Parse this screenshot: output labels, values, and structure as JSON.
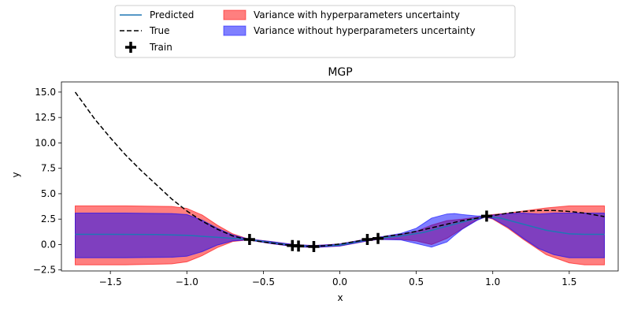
{
  "chart_data": {
    "type": "line",
    "title": "MGP",
    "xlabel": "x",
    "ylabel": "y",
    "xlim": [
      -1.82,
      1.82
    ],
    "ylim": [
      -2.6,
      16.0
    ],
    "xticks": [
      -1.5,
      -1.0,
      -0.5,
      0.0,
      0.5,
      1.0,
      1.5
    ],
    "xtick_labels": [
      "−1.5",
      "−1.0",
      "−0.5",
      "0.0",
      "0.5",
      "1.0",
      "1.5"
    ],
    "yticks": [
      -2.5,
      0.0,
      2.5,
      5.0,
      7.5,
      10.0,
      12.5,
      15.0
    ],
    "ytick_labels": [
      "−2.5",
      "0.0",
      "2.5",
      "5.0",
      "7.5",
      "10.0",
      "12.5",
      "15.0"
    ],
    "grid": false,
    "legend_position": "above-plot",
    "legend": [
      {
        "label": "Predicted",
        "kind": "line",
        "color": "#1f77b4"
      },
      {
        "label": "True",
        "kind": "dashed",
        "color": "#000000"
      },
      {
        "label": "Train",
        "kind": "plus",
        "color": "#000000"
      },
      {
        "label": "Variance with hyperparameters uncertainty",
        "kind": "patch",
        "color": "#ff7f7f",
        "edge": "#ff0000"
      },
      {
        "label": "Variance without hyperparameters uncertainty",
        "kind": "patch",
        "color": "#7f7fff",
        "edge": "#0000ff"
      }
    ],
    "series": [
      {
        "name": "Predicted",
        "style": "line",
        "color": "#1f77b4",
        "x": [
          -1.73,
          -1.5,
          -1.2,
          -1.0,
          -0.8,
          -0.6,
          -0.45,
          -0.3,
          -0.17,
          0.0,
          0.18,
          0.25,
          0.4,
          0.55,
          0.7,
          0.85,
          0.95,
          1.05,
          1.2,
          1.35,
          1.5,
          1.6,
          1.73
        ],
        "y": [
          1.0,
          1.0,
          0.98,
          0.9,
          0.72,
          0.5,
          0.2,
          -0.1,
          -0.2,
          -0.05,
          0.45,
          0.6,
          0.85,
          1.2,
          1.8,
          2.4,
          2.75,
          2.6,
          2.0,
          1.4,
          1.05,
          1.0,
          1.0
        ]
      },
      {
        "name": "True",
        "style": "dashed",
        "color": "#000000",
        "x": [
          -1.73,
          -1.6,
          -1.5,
          -1.4,
          -1.3,
          -1.2,
          -1.1,
          -1.0,
          -0.9,
          -0.8,
          -0.7,
          -0.6,
          -0.5,
          -0.4,
          -0.3,
          -0.2,
          -0.1,
          0.0,
          0.1,
          0.2,
          0.3,
          0.4,
          0.5,
          0.6,
          0.7,
          0.8,
          0.9,
          1.0,
          1.1,
          1.2,
          1.3,
          1.4,
          1.5,
          1.6,
          1.73
        ],
        "y": [
          15.0,
          12.3,
          10.5,
          8.8,
          7.3,
          5.9,
          4.5,
          3.3,
          2.3,
          1.5,
          0.85,
          0.45,
          0.25,
          0.05,
          -0.12,
          -0.2,
          -0.12,
          0.05,
          0.3,
          0.55,
          0.8,
          1.0,
          1.3,
          1.65,
          2.0,
          2.35,
          2.6,
          2.85,
          3.1,
          3.25,
          3.35,
          3.35,
          3.25,
          3.1,
          2.75
        ]
      }
    ],
    "bands": [
      {
        "name": "Variance with hyperparameters uncertainty",
        "color": "#ff0000",
        "opacity": 0.5,
        "x": [
          -1.73,
          -1.4,
          -1.1,
          -1.0,
          -0.9,
          -0.8,
          -0.7,
          -0.6,
          -0.45,
          -0.3,
          -0.17,
          0.0,
          0.18,
          0.25,
          0.4,
          0.5,
          0.6,
          0.7,
          0.8,
          0.9,
          0.95,
          1.0,
          1.1,
          1.2,
          1.35,
          1.5,
          1.6,
          1.73
        ],
        "upper": [
          3.8,
          3.8,
          3.75,
          3.55,
          2.9,
          1.9,
          1.05,
          0.55,
          0.3,
          0.0,
          -0.1,
          0.05,
          0.55,
          0.7,
          1.0,
          1.3,
          1.9,
          2.35,
          2.5,
          2.7,
          2.85,
          2.95,
          3.1,
          3.3,
          3.6,
          3.8,
          3.8,
          3.8
        ],
        "lower": [
          -2.0,
          -2.0,
          -1.9,
          -1.7,
          -1.1,
          -0.3,
          0.3,
          0.45,
          0.1,
          -0.2,
          -0.3,
          -0.15,
          0.35,
          0.5,
          0.5,
          0.35,
          0.0,
          0.6,
          1.55,
          2.45,
          2.7,
          2.5,
          1.6,
          0.5,
          -1.0,
          -1.8,
          -2.0,
          -2.0
        ]
      },
      {
        "name": "Variance without hyperparameters uncertainty",
        "color": "#0000ff",
        "opacity": 0.5,
        "x": [
          -1.73,
          -1.4,
          -1.1,
          -1.0,
          -0.9,
          -0.8,
          -0.7,
          -0.6,
          -0.45,
          -0.3,
          -0.17,
          0.0,
          0.18,
          0.25,
          0.4,
          0.5,
          0.6,
          0.7,
          0.75,
          0.8,
          0.9,
          0.95,
          1.0,
          1.1,
          1.2,
          1.3,
          1.4,
          1.5,
          1.6,
          1.73
        ],
        "upper": [
          3.1,
          3.1,
          3.05,
          2.95,
          2.4,
          1.6,
          0.95,
          0.55,
          0.3,
          0.0,
          -0.1,
          0.05,
          0.55,
          0.7,
          1.1,
          1.6,
          2.6,
          3.0,
          3.05,
          2.95,
          2.8,
          2.8,
          2.9,
          3.05,
          3.1,
          3.0,
          3.1,
          3.1,
          3.1,
          3.1
        ],
        "lower": [
          -1.3,
          -1.3,
          -1.25,
          -1.15,
          -0.7,
          -0.05,
          0.35,
          0.45,
          0.1,
          -0.2,
          -0.3,
          -0.15,
          0.35,
          0.5,
          0.45,
          0.1,
          -0.25,
          0.25,
          0.9,
          1.5,
          2.4,
          2.7,
          2.55,
          1.7,
          0.6,
          -0.4,
          -1.0,
          -1.3,
          -1.3,
          -1.3
        ]
      }
    ],
    "train_points": {
      "name": "Train",
      "marker": "plus",
      "color": "#000000",
      "x": [
        -0.59,
        -0.31,
        -0.27,
        -0.17,
        0.18,
        0.25,
        0.96
      ],
      "y": [
        0.5,
        -0.1,
        -0.15,
        -0.2,
        0.5,
        0.6,
        2.8
      ]
    }
  }
}
